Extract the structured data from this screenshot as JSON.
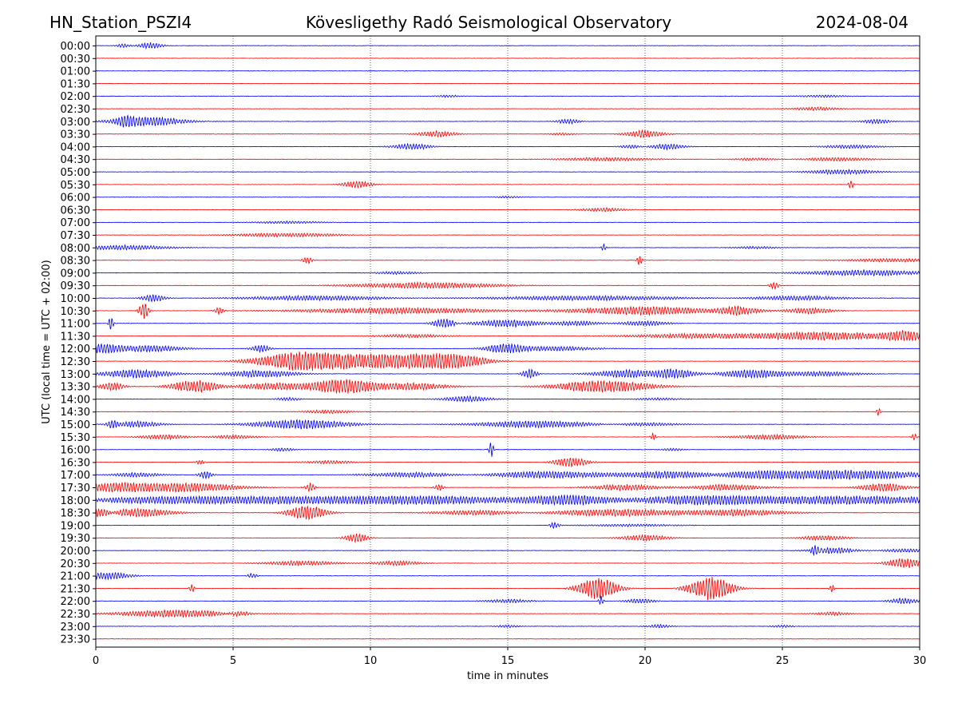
{
  "header": {
    "station": "HN_Station_PSZI4",
    "observatory": "Kövesligethy Radó Seismological Observatory",
    "date": "2024-08-04"
  },
  "chart_data": {
    "type": "line",
    "xlabel": "time in minutes",
    "ylabel": "UTC (local time = UTC + 02:00)",
    "xlim": [
      0,
      30
    ],
    "x_ticks": [
      0,
      5,
      10,
      15,
      20,
      25,
      30
    ],
    "x_tick_labels": [
      "0",
      "5",
      "10",
      "15",
      "20",
      "25",
      "30"
    ],
    "grid": "vertical dotted at x ticks",
    "colors": {
      "even_rows": "#0000ff",
      "odd_rows": "#ff0000"
    },
    "rows": [
      {
        "label": "00:00",
        "events": [
          {
            "t": 1.0,
            "amp": 0.15,
            "dur": 0.3
          },
          {
            "t": 2.0,
            "amp": 0.25,
            "dur": 0.5
          }
        ]
      },
      {
        "label": "00:30",
        "events": []
      },
      {
        "label": "01:00",
        "events": []
      },
      {
        "label": "01:30",
        "events": []
      },
      {
        "label": "02:00",
        "events": [
          {
            "t": 12.8,
            "amp": 0.1,
            "dur": 0.5
          },
          {
            "t": 26.5,
            "amp": 0.1,
            "dur": 1.0
          }
        ]
      },
      {
        "label": "02:30",
        "events": [
          {
            "t": 26.2,
            "amp": 0.15,
            "dur": 1.0
          }
        ]
      },
      {
        "label": "03:00",
        "events": [
          {
            "t": 1.1,
            "amp": 0.35,
            "dur": 0.3
          },
          {
            "t": 1.9,
            "amp": 0.4,
            "dur": 1.5
          },
          {
            "t": 17.2,
            "amp": 0.2,
            "dur": 0.5
          },
          {
            "t": 28.4,
            "amp": 0.2,
            "dur": 0.6
          }
        ]
      },
      {
        "label": "03:30",
        "events": [
          {
            "t": 12.4,
            "amp": 0.25,
            "dur": 0.8
          },
          {
            "t": 17.0,
            "amp": 0.1,
            "dur": 0.5
          },
          {
            "t": 20.0,
            "amp": 0.3,
            "dur": 0.8
          }
        ]
      },
      {
        "label": "04:00",
        "events": [
          {
            "t": 11.5,
            "amp": 0.25,
            "dur": 0.8
          },
          {
            "t": 19.5,
            "amp": 0.15,
            "dur": 0.5
          },
          {
            "t": 20.8,
            "amp": 0.25,
            "dur": 0.7
          },
          {
            "t": 27.5,
            "amp": 0.15,
            "dur": 1.2
          }
        ]
      },
      {
        "label": "04:30",
        "events": [
          {
            "t": 18.5,
            "amp": 0.15,
            "dur": 2.0
          },
          {
            "t": 24.0,
            "amp": 0.1,
            "dur": 1.0
          },
          {
            "t": 27.0,
            "amp": 0.15,
            "dur": 1.5
          }
        ]
      },
      {
        "label": "05:00",
        "events": [
          {
            "t": 27.2,
            "amp": 0.2,
            "dur": 1.5
          }
        ]
      },
      {
        "label": "05:30",
        "events": [
          {
            "t": 9.5,
            "amp": 0.3,
            "dur": 0.6
          },
          {
            "t": 27.5,
            "amp": 0.4,
            "dur": 0.1
          }
        ]
      },
      {
        "label": "06:00",
        "events": [
          {
            "t": 15.0,
            "amp": 0.1,
            "dur": 0.5
          }
        ]
      },
      {
        "label": "06:30",
        "events": [
          {
            "t": 18.5,
            "amp": 0.15,
            "dur": 1.0
          }
        ]
      },
      {
        "label": "07:00",
        "events": [
          {
            "t": 7.0,
            "amp": 0.1,
            "dur": 1.5
          }
        ]
      },
      {
        "label": "07:30",
        "events": [
          {
            "t": 6.0,
            "amp": 0.12,
            "dur": 1.5
          },
          {
            "t": 7.8,
            "amp": 0.12,
            "dur": 1.5
          }
        ]
      },
      {
        "label": "08:00",
        "events": [
          {
            "t": 1.0,
            "amp": 0.2,
            "dur": 2.0
          },
          {
            "t": 18.5,
            "amp": 0.3,
            "dur": 0.1
          },
          {
            "t": 24.0,
            "amp": 0.1,
            "dur": 1.0
          }
        ]
      },
      {
        "label": "08:30",
        "events": [
          {
            "t": 7.7,
            "amp": 0.3,
            "dur": 0.2
          },
          {
            "t": 19.8,
            "amp": 0.45,
            "dur": 0.1
          },
          {
            "t": 29.0,
            "amp": 0.15,
            "dur": 2.0
          }
        ]
      },
      {
        "label": "09:00",
        "events": [
          {
            "t": 11.0,
            "amp": 0.12,
            "dur": 1.0
          },
          {
            "t": 28.0,
            "amp": 0.25,
            "dur": 2.5
          }
        ]
      },
      {
        "label": "09:30",
        "events": [
          {
            "t": 12.0,
            "amp": 0.25,
            "dur": 3.0
          },
          {
            "t": 24.7,
            "amp": 0.3,
            "dur": 0.2
          }
        ]
      },
      {
        "label": "10:00",
        "events": [
          {
            "t": 2.1,
            "amp": 0.3,
            "dur": 0.5
          },
          {
            "t": 8.0,
            "amp": 0.2,
            "dur": 3.0
          },
          {
            "t": 18.0,
            "amp": 0.2,
            "dur": 4.0
          },
          {
            "t": 25.5,
            "amp": 0.2,
            "dur": 2.0
          }
        ]
      },
      {
        "label": "10:30",
        "events": [
          {
            "t": 1.75,
            "amp": 0.7,
            "dur": 0.2
          },
          {
            "t": 4.5,
            "amp": 0.3,
            "dur": 0.2
          },
          {
            "t": 11.0,
            "amp": 0.25,
            "dur": 4.0
          },
          {
            "t": 20.0,
            "amp": 0.35,
            "dur": 3.0
          },
          {
            "t": 23.3,
            "amp": 0.4,
            "dur": 1.0
          },
          {
            "t": 26.0,
            "amp": 0.25,
            "dur": 1.0
          }
        ]
      },
      {
        "label": "11:00",
        "events": [
          {
            "t": 0.55,
            "amp": 0.6,
            "dur": 0.1
          },
          {
            "t": 12.7,
            "amp": 0.4,
            "dur": 0.5
          },
          {
            "t": 15.0,
            "amp": 0.3,
            "dur": 1.5
          },
          {
            "t": 17.5,
            "amp": 0.2,
            "dur": 1.0
          },
          {
            "t": 20.0,
            "amp": 0.2,
            "dur": 1.0
          }
        ]
      },
      {
        "label": "11:30",
        "events": [
          {
            "t": 11.5,
            "amp": 0.15,
            "dur": 1.5
          },
          {
            "t": 22.0,
            "amp": 0.2,
            "dur": 3.0
          },
          {
            "t": 26.5,
            "amp": 0.35,
            "dur": 2.5
          },
          {
            "t": 29.4,
            "amp": 0.45,
            "dur": 1.0
          }
        ]
      },
      {
        "label": "12:00",
        "events": [
          {
            "t": 0.3,
            "amp": 0.45,
            "dur": 1.2
          },
          {
            "t": 1.8,
            "amp": 0.3,
            "dur": 1.5
          },
          {
            "t": 6.0,
            "amp": 0.3,
            "dur": 0.4
          },
          {
            "t": 14.9,
            "amp": 0.4,
            "dur": 0.8
          },
          {
            "t": 16.5,
            "amp": 0.2,
            "dur": 2.0
          }
        ]
      },
      {
        "label": "12:30",
        "events": [
          {
            "t": 7.5,
            "amp": 0.8,
            "dur": 1.8
          },
          {
            "t": 9.5,
            "amp": 0.6,
            "dur": 2.0
          },
          {
            "t": 11.5,
            "amp": 0.55,
            "dur": 2.0
          },
          {
            "t": 13.2,
            "amp": 0.45,
            "dur": 1.2
          },
          {
            "t": 6.0,
            "amp": 0.25,
            "dur": 1.0
          }
        ]
      },
      {
        "label": "13:00",
        "events": [
          {
            "t": 1.5,
            "amp": 0.35,
            "dur": 1.5
          },
          {
            "t": 6.0,
            "amp": 0.3,
            "dur": 1.5
          },
          {
            "t": 15.8,
            "amp": 0.45,
            "dur": 0.3
          },
          {
            "t": 19.5,
            "amp": 0.35,
            "dur": 1.5
          },
          {
            "t": 21.0,
            "amp": 0.45,
            "dur": 1.0
          },
          {
            "t": 24.0,
            "amp": 0.35,
            "dur": 1.5
          },
          {
            "t": 26.5,
            "amp": 0.2,
            "dur": 1.5
          }
        ]
      },
      {
        "label": "13:30",
        "events": [
          {
            "t": 0.6,
            "amp": 0.35,
            "dur": 0.5
          },
          {
            "t": 3.6,
            "amp": 0.5,
            "dur": 1.0
          },
          {
            "t": 6.5,
            "amp": 0.3,
            "dur": 1.5
          },
          {
            "t": 9.0,
            "amp": 0.6,
            "dur": 1.5
          },
          {
            "t": 11.5,
            "amp": 0.3,
            "dur": 1.5
          },
          {
            "t": 18.5,
            "amp": 0.5,
            "dur": 2.0
          }
        ]
      },
      {
        "label": "14:00",
        "events": [
          {
            "t": 7.0,
            "amp": 0.15,
            "dur": 0.5
          },
          {
            "t": 13.5,
            "amp": 0.25,
            "dur": 1.0
          },
          {
            "t": 20.5,
            "amp": 0.1,
            "dur": 1.0
          }
        ]
      },
      {
        "label": "14:30",
        "events": [
          {
            "t": 8.5,
            "amp": 0.15,
            "dur": 1.0
          },
          {
            "t": 28.5,
            "amp": 0.3,
            "dur": 0.1
          }
        ]
      },
      {
        "label": "15:00",
        "events": [
          {
            "t": 0.6,
            "amp": 0.3,
            "dur": 0.2
          },
          {
            "t": 1.5,
            "amp": 0.25,
            "dur": 1.0
          },
          {
            "t": 7.5,
            "amp": 0.4,
            "dur": 2.0
          },
          {
            "t": 16.0,
            "amp": 0.3,
            "dur": 2.5
          },
          {
            "t": 20.0,
            "amp": 0.15,
            "dur": 1.5
          }
        ]
      },
      {
        "label": "15:30",
        "events": [
          {
            "t": 2.5,
            "amp": 0.2,
            "dur": 1.0
          },
          {
            "t": 5.0,
            "amp": 0.15,
            "dur": 1.0
          },
          {
            "t": 20.3,
            "amp": 0.35,
            "dur": 0.1
          },
          {
            "t": 24.5,
            "amp": 0.2,
            "dur": 1.5
          },
          {
            "t": 29.8,
            "amp": 0.35,
            "dur": 0.1
          }
        ]
      },
      {
        "label": "16:00",
        "events": [
          {
            "t": 6.8,
            "amp": 0.15,
            "dur": 0.5
          },
          {
            "t": 14.4,
            "amp": 0.6,
            "dur": 0.1
          },
          {
            "t": 21.0,
            "amp": 0.1,
            "dur": 0.5
          }
        ]
      },
      {
        "label": "16:30",
        "events": [
          {
            "t": 8.5,
            "amp": 0.15,
            "dur": 1.0
          },
          {
            "t": 17.3,
            "amp": 0.4,
            "dur": 0.7
          },
          {
            "t": 3.8,
            "amp": 0.2,
            "dur": 0.2
          }
        ]
      },
      {
        "label": "17:00",
        "events": [
          {
            "t": 1.5,
            "amp": 0.2,
            "dur": 1.0
          },
          {
            "t": 4.0,
            "amp": 0.3,
            "dur": 0.3
          },
          {
            "t": 11.5,
            "amp": 0.2,
            "dur": 2.0
          },
          {
            "t": 16.5,
            "amp": 0.3,
            "dur": 2.5
          },
          {
            "t": 21.0,
            "amp": 0.3,
            "dur": 2.0
          },
          {
            "t": 24.0,
            "amp": 0.3,
            "dur": 2.0
          },
          {
            "t": 27.5,
            "amp": 0.4,
            "dur": 3.0
          }
        ]
      },
      {
        "label": "17:30",
        "events": [
          {
            "t": 1.0,
            "amp": 0.4,
            "dur": 2.0
          },
          {
            "t": 3.5,
            "amp": 0.35,
            "dur": 2.0
          },
          {
            "t": 7.8,
            "amp": 0.35,
            "dur": 0.2
          },
          {
            "t": 12.5,
            "amp": 0.25,
            "dur": 0.2
          },
          {
            "t": 19.3,
            "amp": 0.25,
            "dur": 1.5
          },
          {
            "t": 23.0,
            "amp": 0.25,
            "dur": 1.5
          },
          {
            "t": 28.7,
            "amp": 0.35,
            "dur": 1.0
          }
        ]
      },
      {
        "label": "18:00",
        "events": [
          {
            "t": 2.0,
            "amp": 0.25,
            "dur": 3.0
          },
          {
            "t": 6.5,
            "amp": 0.3,
            "dur": 4.0
          },
          {
            "t": 12.0,
            "amp": 0.35,
            "dur": 4.0
          },
          {
            "t": 17.3,
            "amp": 0.4,
            "dur": 2.0
          },
          {
            "t": 22.0,
            "amp": 0.35,
            "dur": 3.0
          },
          {
            "t": 27.5,
            "amp": 0.35,
            "dur": 5.0
          }
        ]
      },
      {
        "label": "18:30",
        "events": [
          {
            "t": 0.2,
            "amp": 0.5,
            "dur": 0.5
          },
          {
            "t": 1.5,
            "amp": 0.35,
            "dur": 1.5
          },
          {
            "t": 7.7,
            "amp": 0.6,
            "dur": 0.8
          },
          {
            "t": 14.0,
            "amp": 0.2,
            "dur": 2.0
          },
          {
            "t": 19.0,
            "amp": 0.3,
            "dur": 3.0
          },
          {
            "t": 23.5,
            "amp": 0.25,
            "dur": 2.0
          }
        ]
      },
      {
        "label": "19:00",
        "events": [
          {
            "t": 16.7,
            "amp": 0.25,
            "dur": 0.2
          },
          {
            "t": 19.5,
            "amp": 0.1,
            "dur": 2.0
          }
        ]
      },
      {
        "label": "19:30",
        "events": [
          {
            "t": 9.5,
            "amp": 0.35,
            "dur": 0.5
          },
          {
            "t": 20.0,
            "amp": 0.25,
            "dur": 1.0
          },
          {
            "t": 26.5,
            "amp": 0.2,
            "dur": 1.0
          }
        ]
      },
      {
        "label": "20:00",
        "events": [
          {
            "t": 26.2,
            "amp": 0.55,
            "dur": 0.2
          },
          {
            "t": 26.8,
            "amp": 0.25,
            "dur": 1.0
          },
          {
            "t": 29.5,
            "amp": 0.15,
            "dur": 1.0
          }
        ]
      },
      {
        "label": "20:30",
        "events": [
          {
            "t": 7.5,
            "amp": 0.2,
            "dur": 1.5
          },
          {
            "t": 11.0,
            "amp": 0.2,
            "dur": 1.0
          },
          {
            "t": 29.5,
            "amp": 0.4,
            "dur": 0.8
          }
        ]
      },
      {
        "label": "21:00",
        "events": [
          {
            "t": 0.4,
            "amp": 0.3,
            "dur": 1.0
          },
          {
            "t": 5.7,
            "amp": 0.2,
            "dur": 0.2
          }
        ]
      },
      {
        "label": "21:30",
        "events": [
          {
            "t": 3.5,
            "amp": 0.35,
            "dur": 0.1
          },
          {
            "t": 18.3,
            "amp": 0.9,
            "dur": 0.8
          },
          {
            "t": 22.4,
            "amp": 0.95,
            "dur": 0.9
          },
          {
            "t": 26.8,
            "amp": 0.35,
            "dur": 0.1
          }
        ]
      },
      {
        "label": "22:00",
        "events": [
          {
            "t": 15.0,
            "amp": 0.15,
            "dur": 1.0
          },
          {
            "t": 18.4,
            "amp": 0.4,
            "dur": 0.1
          },
          {
            "t": 19.8,
            "amp": 0.2,
            "dur": 0.6
          },
          {
            "t": 29.4,
            "amp": 0.25,
            "dur": 0.6
          }
        ]
      },
      {
        "label": "22:30",
        "events": [
          {
            "t": 3.0,
            "amp": 0.3,
            "dur": 2.5
          },
          {
            "t": 5.2,
            "amp": 0.3,
            "dur": 0.6
          },
          {
            "t": 26.8,
            "amp": 0.15,
            "dur": 0.8
          }
        ]
      },
      {
        "label": "23:00",
        "events": [
          {
            "t": 15.0,
            "amp": 0.12,
            "dur": 0.5
          },
          {
            "t": 20.5,
            "amp": 0.15,
            "dur": 0.5
          },
          {
            "t": 25.0,
            "amp": 0.1,
            "dur": 0.5
          }
        ]
      },
      {
        "label": "23:30",
        "events": []
      }
    ]
  }
}
